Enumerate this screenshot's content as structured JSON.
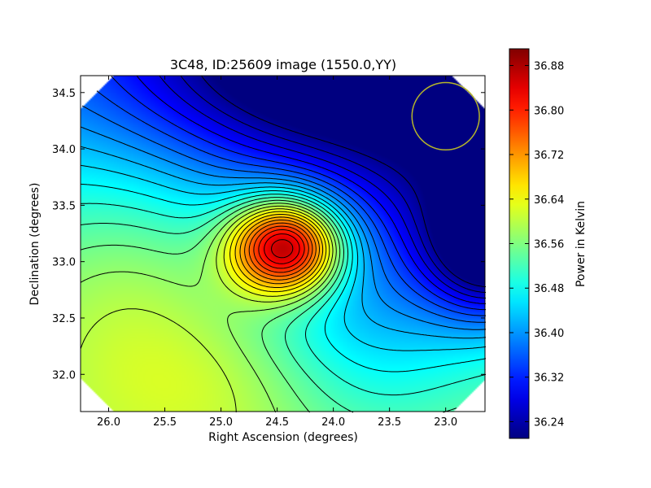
{
  "chart_data": {
    "type": "heatmap",
    "title": "3C48, ID:25609 image (1550.0,YY)",
    "xlabel": "Right Ascension (degrees)",
    "ylabel": "Declination (degrees)",
    "xlim": [
      26.25,
      22.65
    ],
    "ylim": [
      31.67,
      34.65
    ],
    "x_reversed": true,
    "x_ticks": [
      26.0,
      25.5,
      25.0,
      24.5,
      24.0,
      23.5,
      23.0
    ],
    "x_tick_labels": [
      "26.0",
      "25.5",
      "25.0",
      "24.5",
      "24.0",
      "23.5",
      "23.0"
    ],
    "y_ticks": [
      32.0,
      32.5,
      33.0,
      33.5,
      34.0,
      34.5
    ],
    "y_tick_labels": [
      "32.0",
      "32.5",
      "33.0",
      "33.5",
      "34.0",
      "34.5"
    ],
    "colormap": "jet",
    "colorbar": {
      "label": "Power in Kelvin",
      "range": [
        36.21,
        36.91
      ],
      "ticks": [
        36.24,
        36.32,
        36.4,
        36.48,
        36.56,
        36.64,
        36.72,
        36.8,
        36.88
      ],
      "tick_labels": [
        "36.24",
        "36.32",
        "36.40",
        "36.48",
        "36.56",
        "36.64",
        "36.72",
        "36.80",
        "36.88"
      ]
    },
    "field": {
      "background": 36.485,
      "features": [
        {
          "kind": "peak",
          "ra": 24.42,
          "dec": 33.14,
          "amplitude": 0.43,
          "sigma_ra": 0.35,
          "sigma_dec": 0.3
        },
        {
          "kind": "trough",
          "ra": 24.0,
          "dec": 34.75,
          "amplitude": -0.28,
          "sigma_ra": 1.3,
          "sigma_dec": 0.75
        },
        {
          "kind": "trough",
          "ra": 22.55,
          "dec": 33.12,
          "amplitude": -0.3,
          "sigma_ra": 0.45,
          "sigma_dec": 0.45
        },
        {
          "kind": "trough",
          "ra": 22.9,
          "dec": 33.85,
          "amplitude": -0.1,
          "sigma_ra": 0.6,
          "sigma_dec": 0.6
        },
        {
          "kind": "trough",
          "ra": 23.7,
          "dec": 32.6,
          "amplitude": -0.09,
          "sigma_ra": 0.7,
          "sigma_dec": 0.8
        },
        {
          "kind": "peak",
          "ra": 25.85,
          "dec": 32.75,
          "amplitude": 0.09,
          "sigma_ra": 0.9,
          "sigma_dec": 0.9
        },
        {
          "kind": "peak",
          "ra": 24.9,
          "dec": 31.9,
          "amplitude": 0.04,
          "sigma_ra": 0.8,
          "sigma_dec": 0.5
        }
      ],
      "gradient_per_degree_dec": -0.05,
      "contour_step": 0.025
    },
    "beam_circle": {
      "ra": 23.0,
      "dec": 34.29,
      "radius_deg": 0.3,
      "color": "#b5b52a"
    },
    "valid_region_corners": "octagon"
  }
}
